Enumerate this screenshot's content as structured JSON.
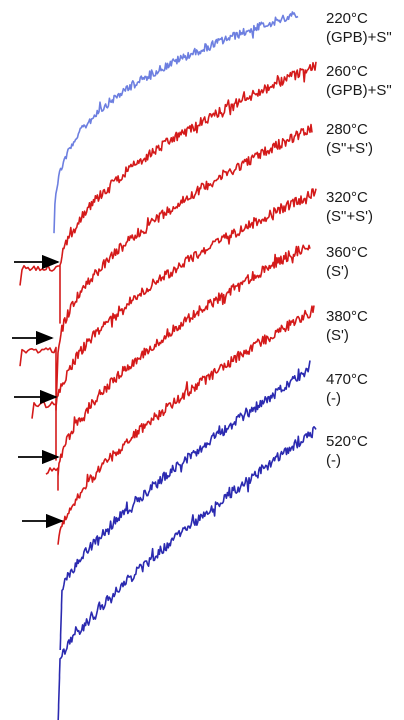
{
  "chart_data": {
    "type": "line",
    "title": "",
    "xlabel": "",
    "ylabel": "",
    "series": [
      {
        "temperature": "220°C",
        "phase": "(GPB)+S\"",
        "color": "#6d7fe0",
        "arrow": false
      },
      {
        "temperature": "260°C",
        "phase": "(GPB)+S\"",
        "color": "#d41a1a",
        "arrow": false
      },
      {
        "temperature": "280°C",
        "phase": "(S\"+S')",
        "color": "#d41a1a",
        "arrow": true
      },
      {
        "temperature": "320°C",
        "phase": "(S\"+S')",
        "color": "#d41a1a",
        "arrow": true
      },
      {
        "temperature": "360°C",
        "phase": "(S')",
        "color": "#d41a1a",
        "arrow": true
      },
      {
        "temperature": "380°C",
        "phase": "(S')",
        "color": "#d41a1a",
        "arrow": true
      },
      {
        "temperature": "470°C",
        "phase": "(-)",
        "color": "#2b2ab0",
        "arrow": false
      },
      {
        "temperature": "520°C",
        "phase": "(-)",
        "color": "#2b2ab0",
        "arrow": false
      }
    ]
  }
}
